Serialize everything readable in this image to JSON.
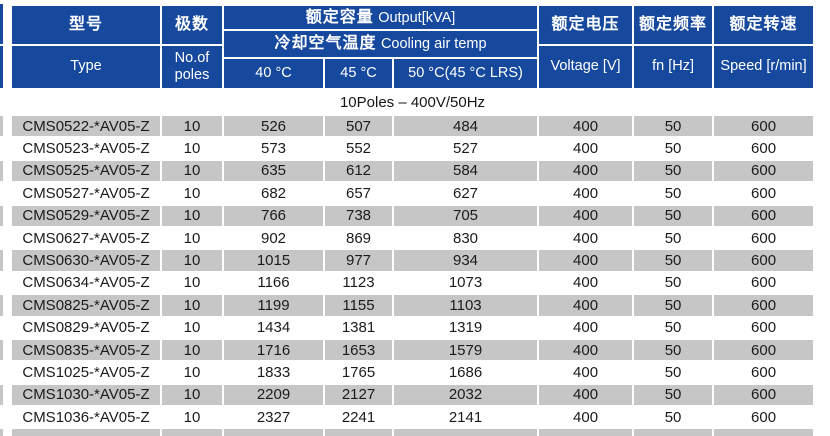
{
  "table": {
    "header": {
      "type_zh": "型号",
      "type_en": "Type",
      "poles_zh": "极数",
      "poles_en": "No.of poles",
      "output_title_zh": "额定容量",
      "output_title_en": "Output[kVA]",
      "cooling_zh": "冷却空气温度",
      "cooling_en": "Cooling air temp",
      "temp_cols": [
        "40 °C",
        "45 °C",
        "50 °C(45 °C LRS)"
      ],
      "voltage_zh": "额定电压",
      "voltage_en": "Voltage [V]",
      "freq_zh": "额定频率",
      "freq_en": "fn [Hz]",
      "speed_zh": "额定转速",
      "speed_en": "Speed [r/min]"
    },
    "section_label": "10Poles – 400V/50Hz",
    "rows": [
      [
        "CMS0522-*AV05-Z",
        "10",
        "526",
        "507",
        "484",
        "400",
        "50",
        "600"
      ],
      [
        "CMS0523-*AV05-Z",
        "10",
        "573",
        "552",
        "527",
        "400",
        "50",
        "600"
      ],
      [
        "CMS0525-*AV05-Z",
        "10",
        "635",
        "612",
        "584",
        "400",
        "50",
        "600"
      ],
      [
        "CMS0527-*AV05-Z",
        "10",
        "682",
        "657",
        "627",
        "400",
        "50",
        "600"
      ],
      [
        "CMS0529-*AV05-Z",
        "10",
        "766",
        "738",
        "705",
        "400",
        "50",
        "600"
      ],
      [
        "CMS0627-*AV05-Z",
        "10",
        "902",
        "869",
        "830",
        "400",
        "50",
        "600"
      ],
      [
        "CMS0630-*AV05-Z",
        "10",
        "1015",
        "977",
        "934",
        "400",
        "50",
        "600"
      ],
      [
        "CMS0634-*AV05-Z",
        "10",
        "1166",
        "1123",
        "1073",
        "400",
        "50",
        "600"
      ],
      [
        "CMS0825-*AV05-Z",
        "10",
        "1199",
        "1155",
        "1103",
        "400",
        "50",
        "600"
      ],
      [
        "CMS0829-*AV05-Z",
        "10",
        "1434",
        "1381",
        "1319",
        "400",
        "50",
        "600"
      ],
      [
        "CMS0835-*AV05-Z",
        "10",
        "1716",
        "1653",
        "1579",
        "400",
        "50",
        "600"
      ],
      [
        "CMS1025-*AV05-Z",
        "10",
        "1833",
        "1765",
        "1686",
        "400",
        "50",
        "600"
      ],
      [
        "CMS1030-*AV05-Z",
        "10",
        "2209",
        "2127",
        "2032",
        "400",
        "50",
        "600"
      ],
      [
        "CMS1036-*AV05-Z",
        "10",
        "2327",
        "2241",
        "2141",
        "400",
        "50",
        "600"
      ]
    ]
  },
  "colors": {
    "header_blue": "#16499D",
    "row_gray": "#C6C6C6",
    "text_dark": "#1B1B1B"
  }
}
